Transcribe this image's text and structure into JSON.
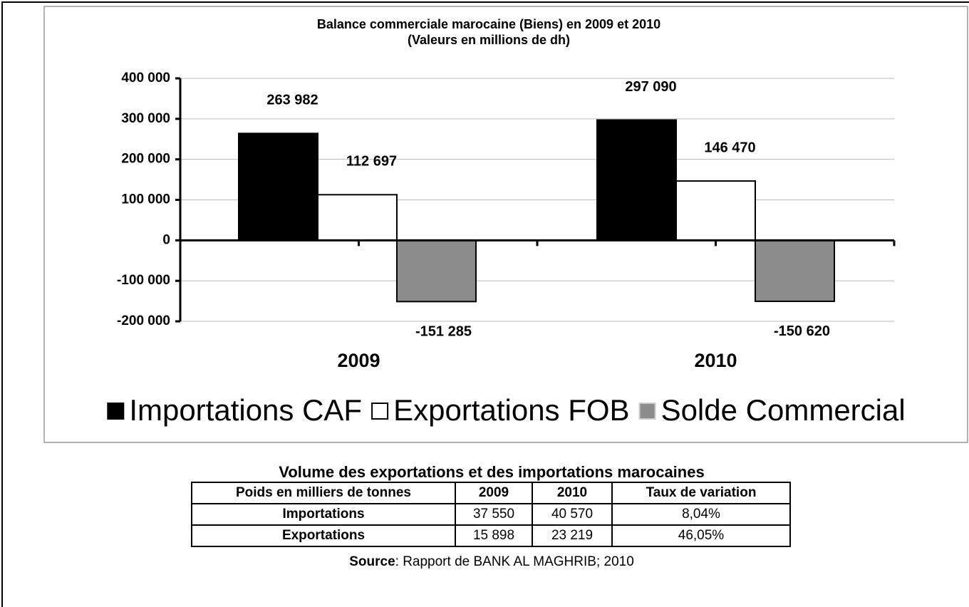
{
  "chart_data": {
    "type": "bar",
    "title": "Balance commerciale marocaine (Biens) en 2009 et 2010",
    "subtitle": "(Valeurs en millions de dh)",
    "categories": [
      "2009",
      "2010"
    ],
    "series": [
      {
        "name": "Importations CAF",
        "color": "#000000",
        "values": [
          263982,
          297090
        ],
        "value_labels": [
          "263 982",
          "297 090"
        ]
      },
      {
        "name": "Exportations FOB",
        "color": "#ffffff",
        "values": [
          112697,
          146470
        ],
        "value_labels": [
          "112 697",
          "146 470"
        ]
      },
      {
        "name": "Solde Commercial",
        "color": "#8c8c8c",
        "values": [
          -151285,
          -150620
        ],
        "value_labels": [
          "-151 285",
          "-150 620"
        ]
      }
    ],
    "ylim": [
      -200000,
      400000
    ],
    "yticks": [
      {
        "value": -200000,
        "label": "-200 000"
      },
      {
        "value": -100000,
        "label": "-100 000"
      },
      0,
      {
        "value": 100000,
        "label": "100 000"
      },
      {
        "value": 200000,
        "label": "200 000"
      },
      {
        "value": 300000,
        "label": "300 000"
      },
      {
        "value": 400000,
        "label": "400 000"
      }
    ],
    "grid": true,
    "legend": "bottom"
  },
  "table": {
    "title": "Volume des exportations et des importations marocaines",
    "header": [
      "Poids en milliers de tonnes",
      "2009",
      "2010",
      "Taux de variation"
    ],
    "rows": [
      [
        "Importations",
        "37 550",
        "40 570",
        "8,04%"
      ],
      [
        "Exportations",
        "15 898",
        "23 219",
        "46,05%"
      ]
    ]
  },
  "source": {
    "label": "Source",
    "text": ": Rapport de BANK AL MAGHRIB; 2010"
  }
}
